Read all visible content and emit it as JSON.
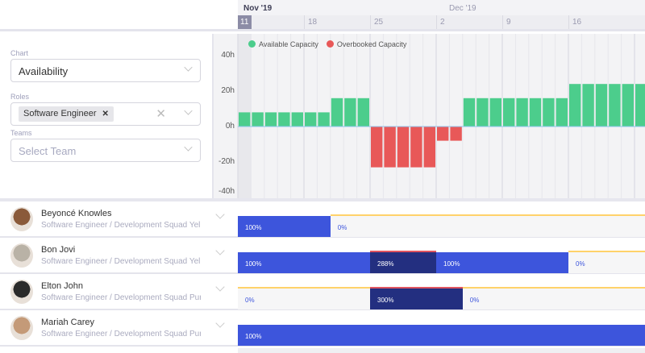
{
  "timeline": {
    "months": [
      {
        "label": "Nov '19",
        "current": true
      },
      {
        "label": "Dec '19",
        "current": false
      }
    ],
    "weeks": [
      "11",
      "18",
      "25",
      "2",
      "9",
      "16"
    ],
    "today": "11"
  },
  "filters": {
    "chart_label": "Chart",
    "chart_value": "Availability",
    "roles_label": "Roles",
    "roles_chip": "Software Engineer",
    "teams_label": "Teams",
    "teams_placeholder": "Select Team"
  },
  "chart_data": {
    "type": "bar",
    "ylabel": "",
    "yticks": [
      "40h",
      "20h",
      "0h",
      "-20h",
      "-40h"
    ],
    "ylim": [
      -40,
      40
    ],
    "unit": "h",
    "legend": [
      {
        "name": "Available Capacity",
        "color": "#4ccd8c"
      },
      {
        "name": "Overbooked Capacity",
        "color": "#e85858"
      }
    ],
    "values": [
      8,
      8,
      8,
      8,
      8,
      8,
      8,
      16,
      16,
      16,
      -23,
      -23,
      -23,
      -23,
      -23,
      -8,
      -8,
      16,
      16,
      16,
      16,
      16,
      16,
      16,
      16,
      24,
      24,
      24,
      24,
      24,
      24
    ]
  },
  "people": [
    {
      "name": "Beyoncé Knowles",
      "sub": "Software Engineer / Development Squad Yellow",
      "avatar": "#8a5a3a",
      "segments": [
        {
          "label": "100%",
          "type": "full",
          "days": 7
        },
        {
          "label": "0%",
          "type": "zero",
          "days": 24
        }
      ]
    },
    {
      "name": "Bon Jovi",
      "sub": "Software Engineer / Development Squad Yellow",
      "avatar": "#b9b2a6",
      "segments": [
        {
          "label": "100%",
          "type": "full",
          "days": 10
        },
        {
          "label": "288%",
          "type": "over",
          "days": 5
        },
        {
          "label": "100%",
          "type": "full",
          "days": 10
        },
        {
          "label": "0%",
          "type": "zero",
          "days": 6
        }
      ]
    },
    {
      "name": "Elton John",
      "sub": "Software Engineer / Development Squad Purple",
      "avatar": "#2b2b2b",
      "segments": [
        {
          "label": "0%",
          "type": "zero",
          "days": 10
        },
        {
          "label": "300%",
          "type": "over",
          "days": 7
        },
        {
          "label": "0%",
          "type": "zero",
          "days": 14
        }
      ]
    },
    {
      "name": "Mariah Carey",
      "sub": "Software Engineer / Development Squad Purple",
      "avatar": "#c49a78",
      "segments": [
        {
          "label": "100%",
          "type": "full",
          "days": 31
        }
      ]
    }
  ]
}
